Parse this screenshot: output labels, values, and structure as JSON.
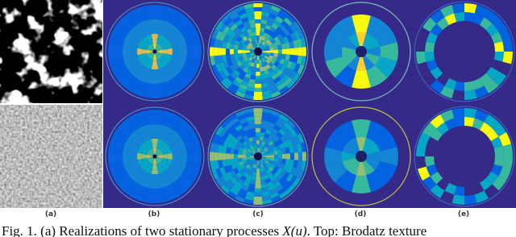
{
  "figure": {
    "panel_labels": [
      "(a)",
      "(b)",
      "(c)",
      "(d)",
      "(e)"
    ],
    "caption": {
      "prefix": "Fig. 1. (a) Realizations of two stationary processes ",
      "math": "X(u)",
      "suffix": ". Top: Brodatz texture"
    }
  }
}
